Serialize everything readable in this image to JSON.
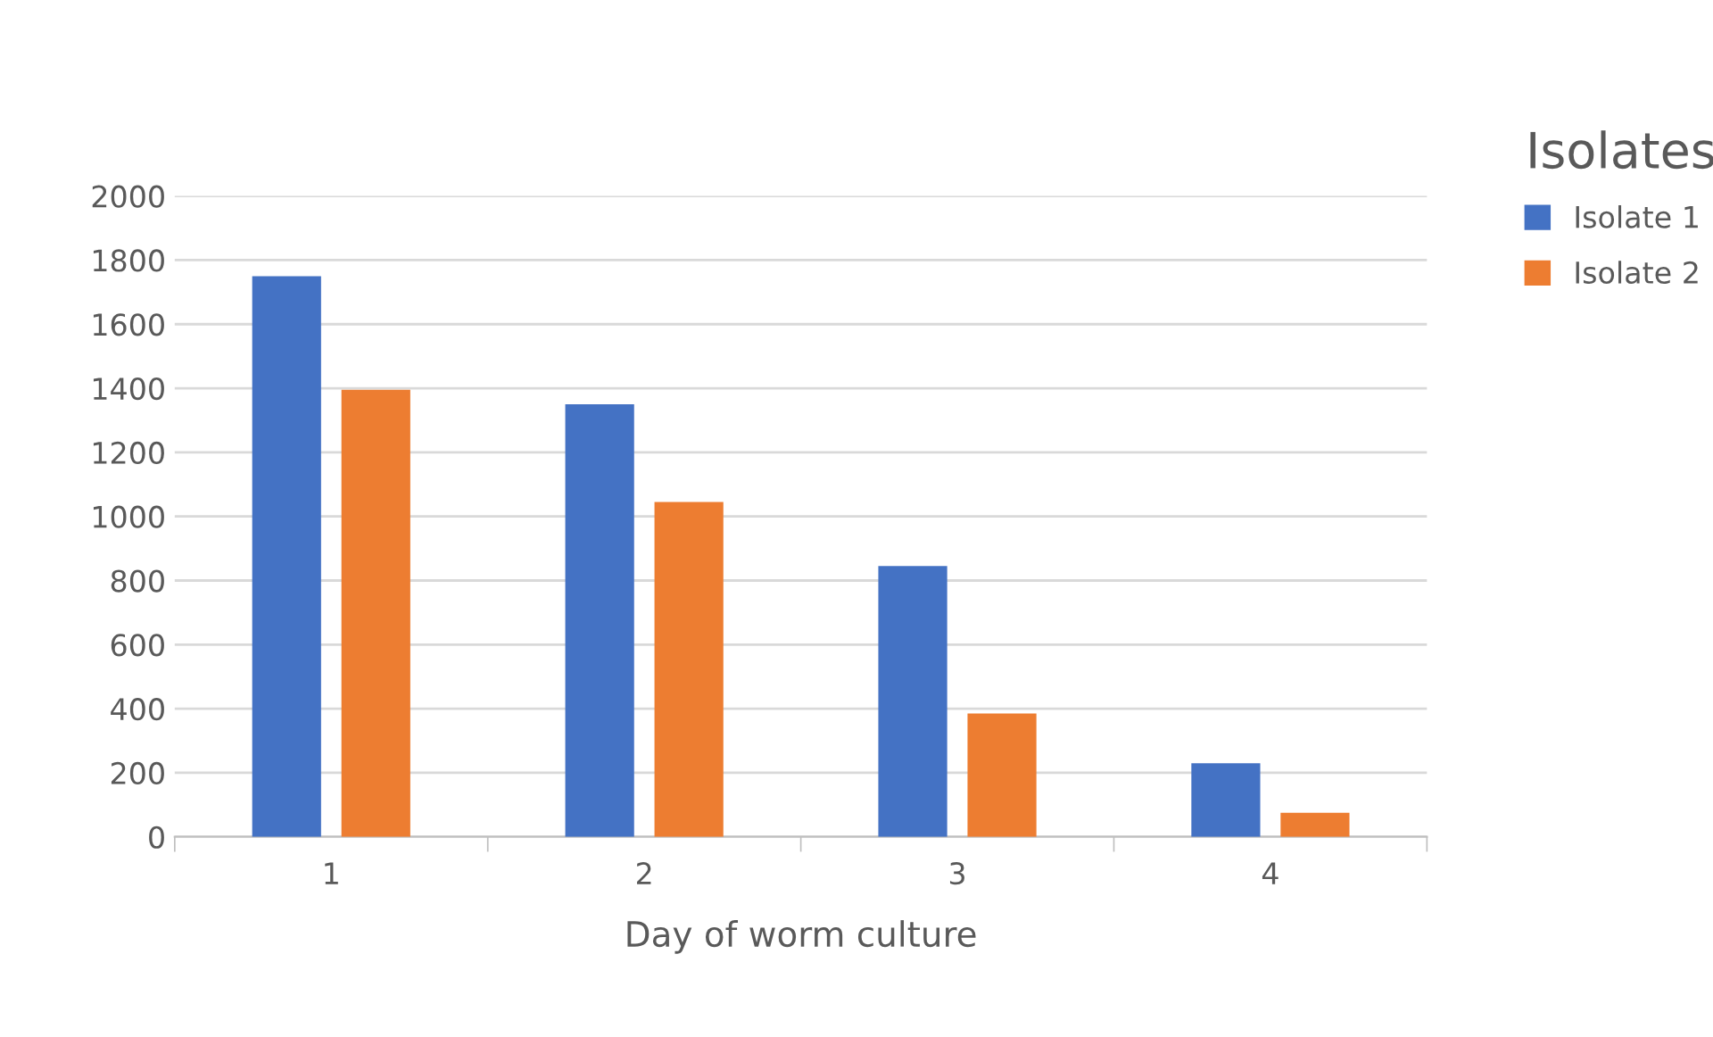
{
  "chart_data": {
    "type": "bar",
    "xlabel": "Day of worm culture",
    "legend_title": "Isolates",
    "categories": [
      "1",
      "2",
      "3",
      "4"
    ],
    "series": [
      {
        "name": "Isolate 1",
        "color": "#4472c4",
        "values": [
          1750,
          1350,
          845,
          230
        ]
      },
      {
        "name": "Isolate 2",
        "color": "#ed7d31",
        "values": [
          1395,
          1045,
          385,
          75
        ]
      }
    ],
    "ylim": [
      0,
      2000
    ],
    "yticks": [
      0,
      200,
      400,
      600,
      800,
      1000,
      1200,
      1400,
      1600,
      1800,
      2000
    ],
    "grid": "y",
    "legend": "right"
  }
}
